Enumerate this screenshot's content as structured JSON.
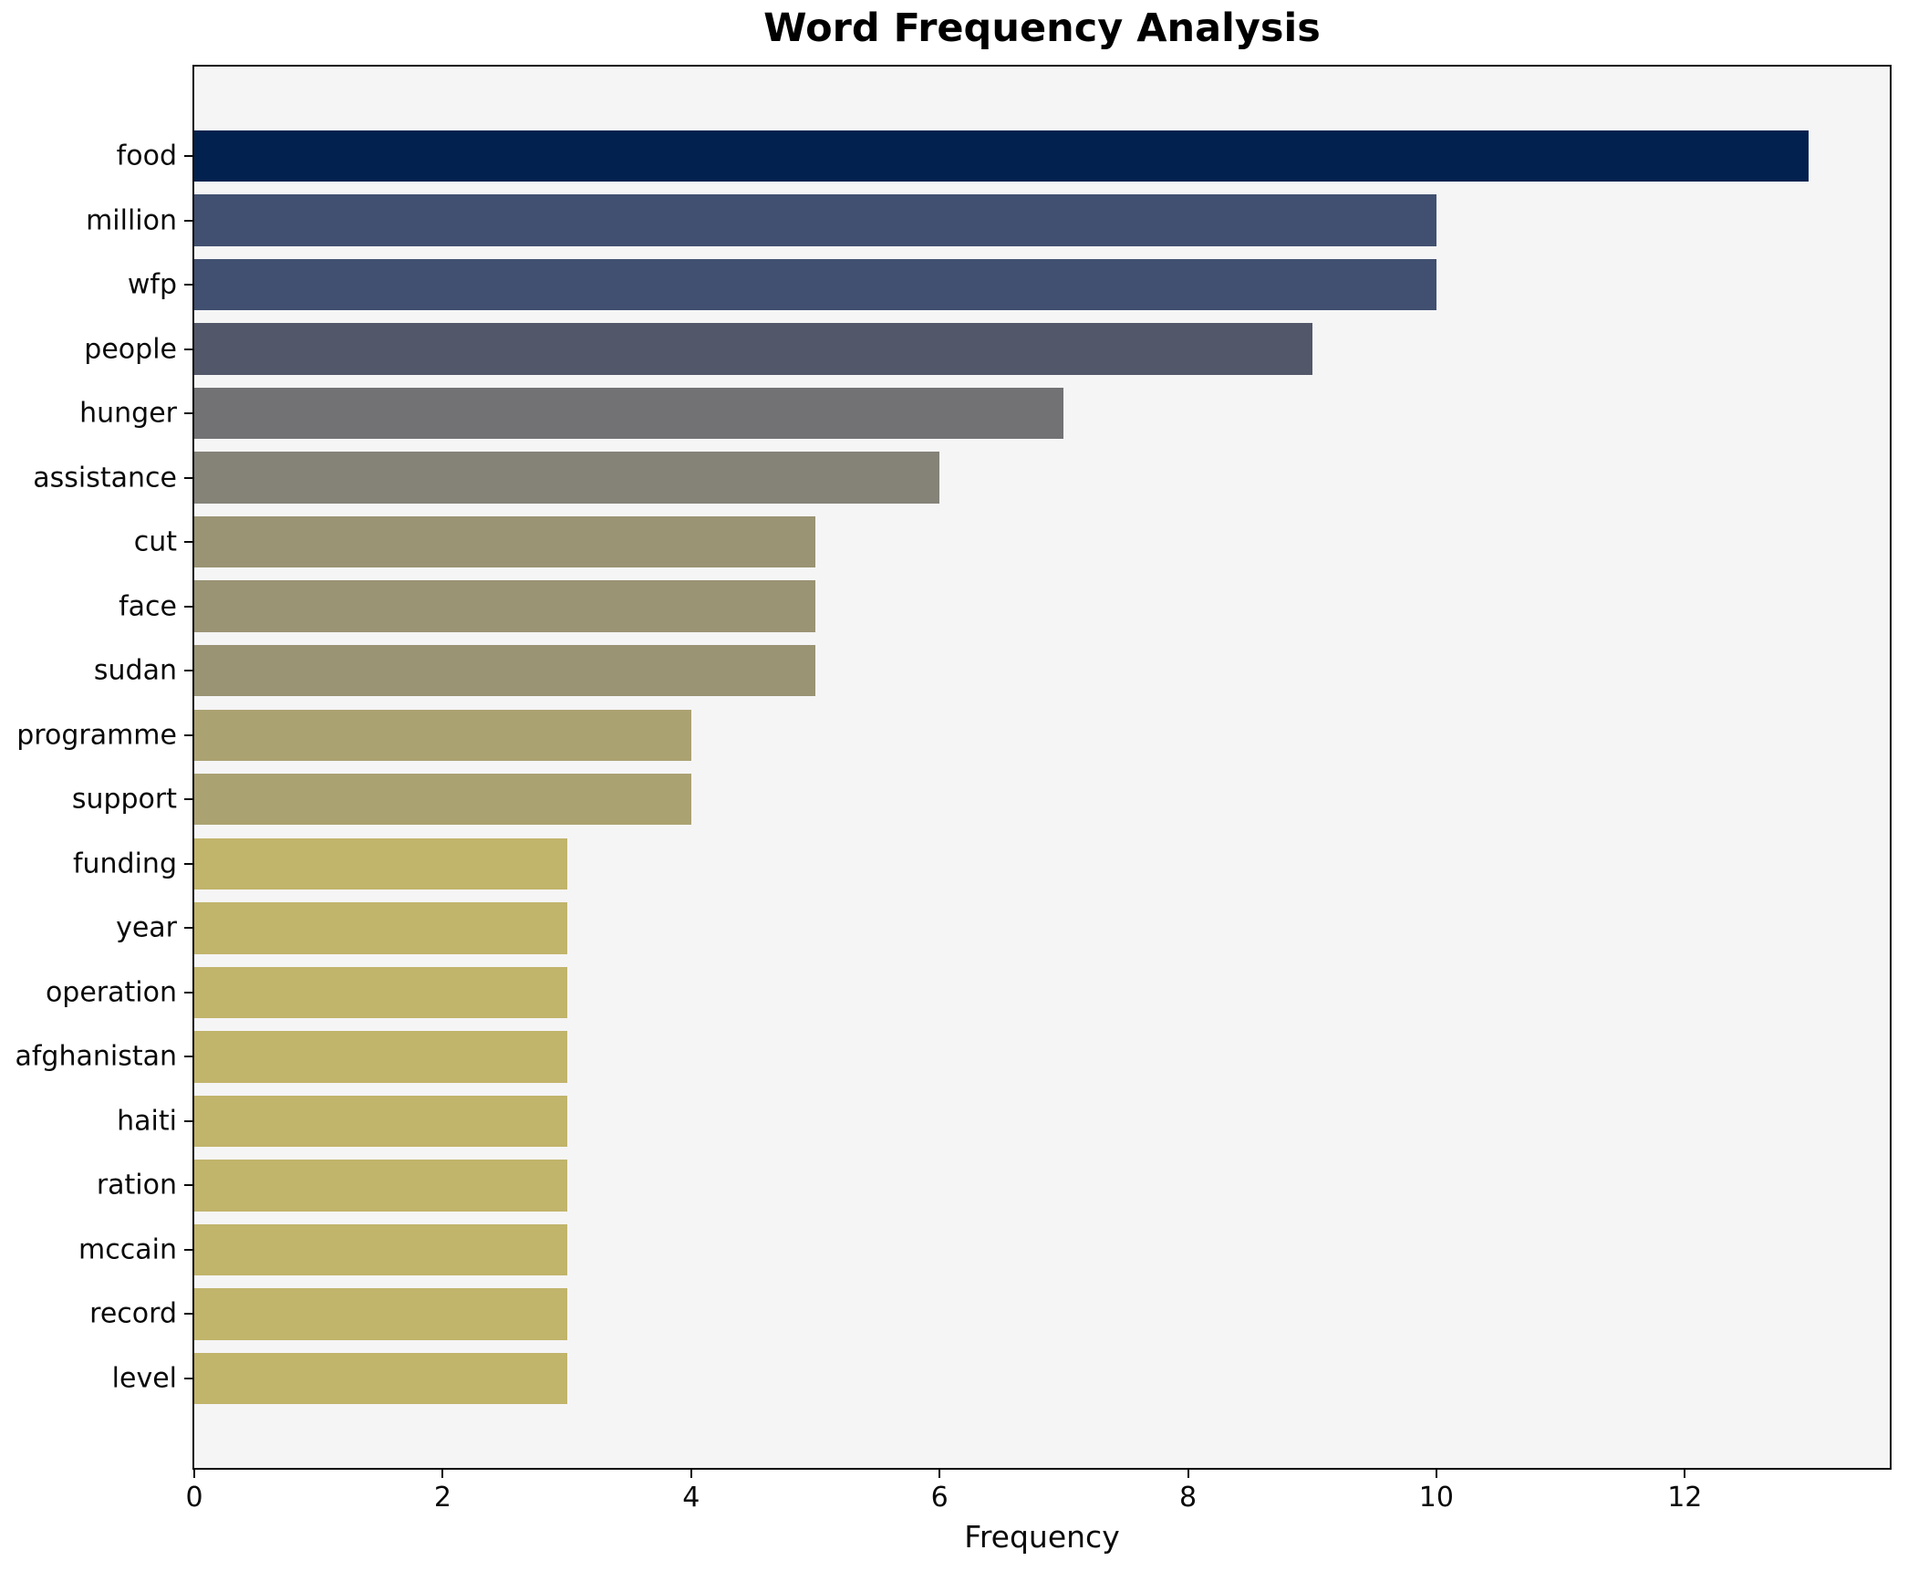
{
  "chart_data": {
    "type": "bar",
    "orientation": "horizontal",
    "title": "Word Frequency Analysis",
    "xlabel": "Frequency",
    "ylabel": "",
    "categories": [
      "food",
      "million",
      "wfp",
      "people",
      "hunger",
      "assistance",
      "cut",
      "face",
      "sudan",
      "programme",
      "support",
      "funding",
      "year",
      "operation",
      "afghanistan",
      "haiti",
      "ration",
      "mccain",
      "record",
      "level"
    ],
    "values": [
      13,
      10,
      10,
      9,
      7,
      6,
      5,
      5,
      5,
      4,
      4,
      3,
      3,
      3,
      3,
      3,
      3,
      3,
      3,
      3
    ],
    "bar_colors": [
      "#02214e",
      "#415070",
      "#415070",
      "#525869",
      "#727274",
      "#858278",
      "#9a9374",
      "#9a9374",
      "#9a9374",
      "#aba272",
      "#aba272",
      "#c1b46b",
      "#c1b46b",
      "#c1b46b",
      "#c1b46b",
      "#c1b46b",
      "#c1b46b",
      "#c1b46b",
      "#c1b46b",
      "#c1b46b"
    ],
    "colormap": "cividis",
    "xticks": [
      0,
      2,
      4,
      6,
      8,
      10,
      12
    ],
    "xlim": [
      0,
      13.65
    ],
    "grid": false,
    "legend": "none",
    "plot_background": "#f5f5f6",
    "figure_background": "#ffffff"
  }
}
